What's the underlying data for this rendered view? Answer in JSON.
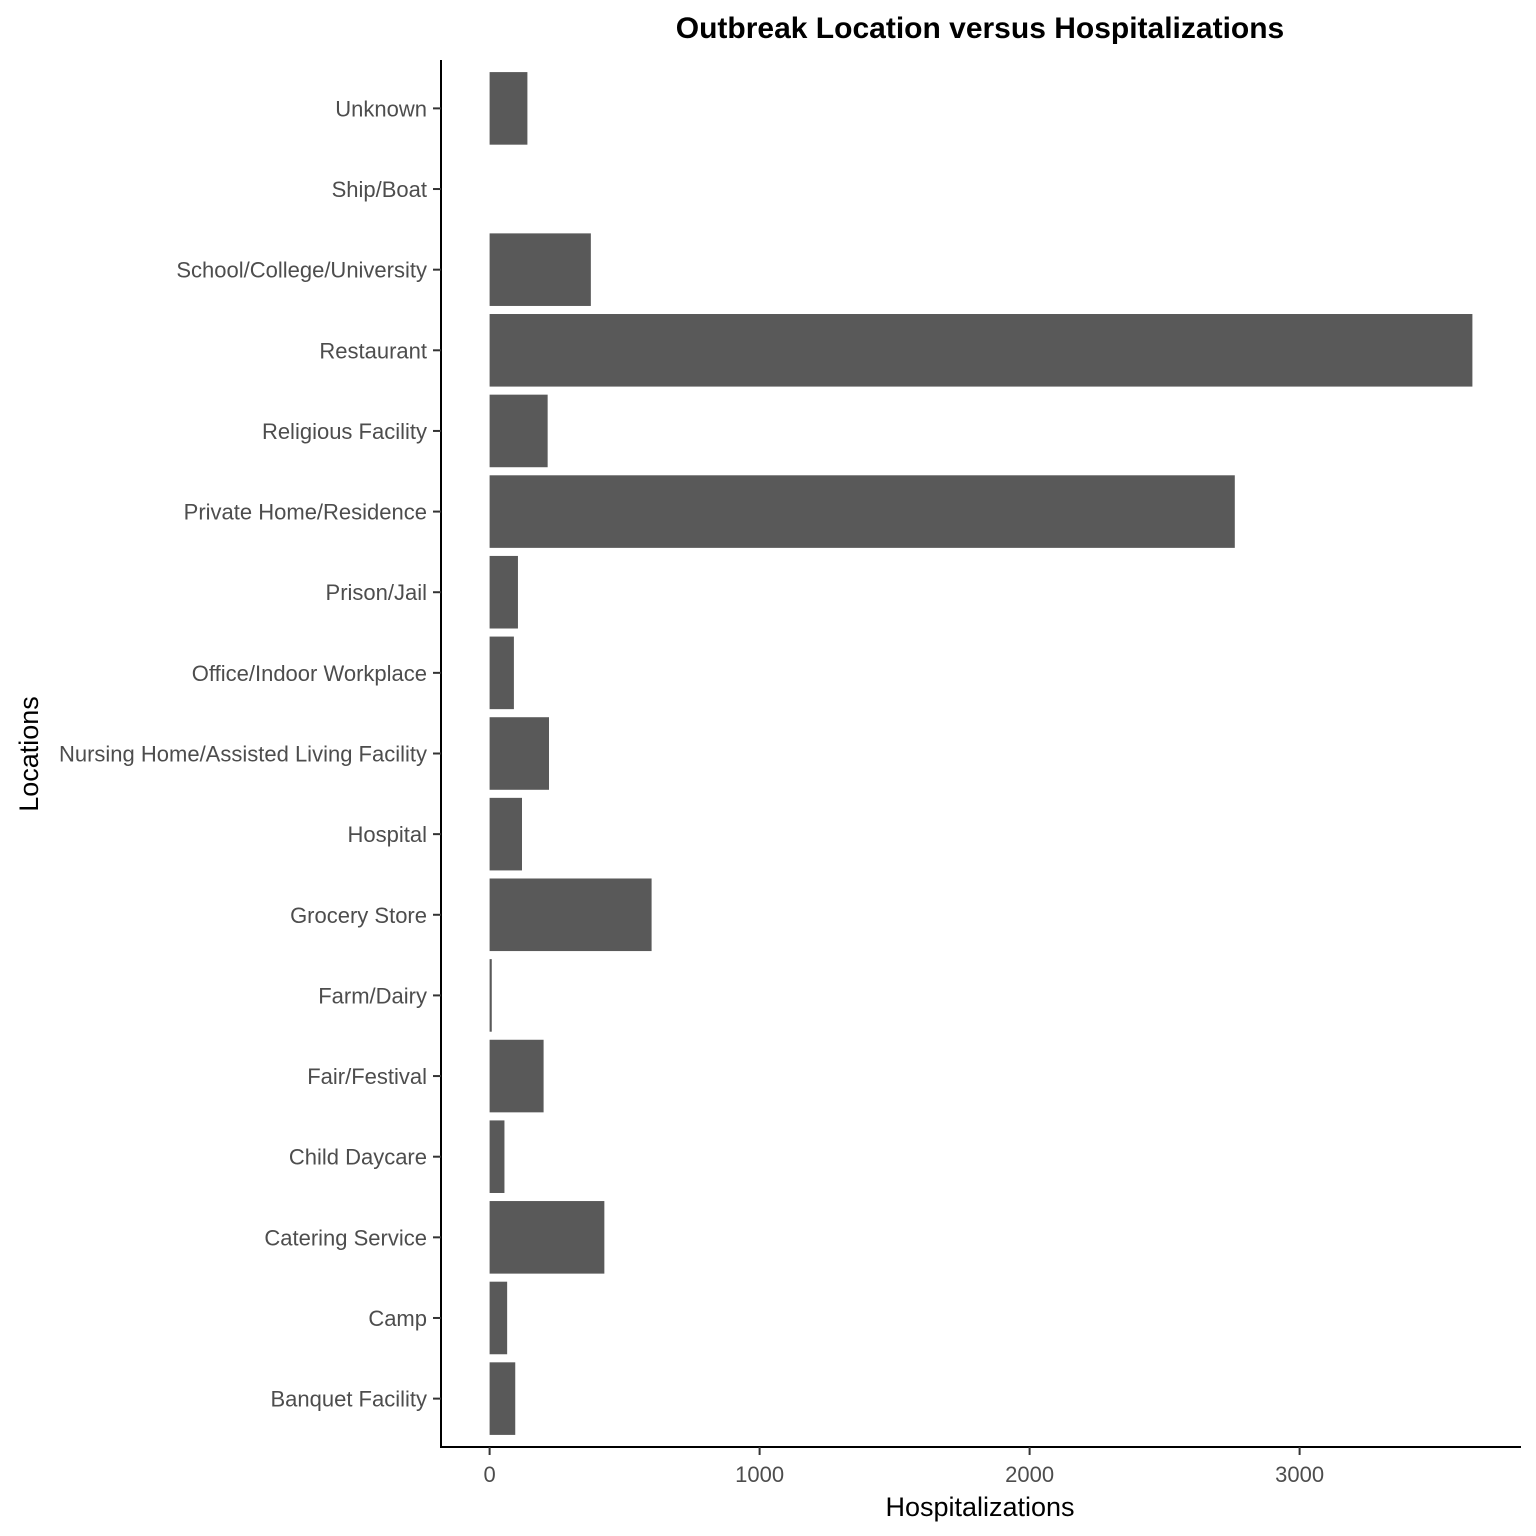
{
  "chart_data": {
    "type": "bar",
    "orientation": "horizontal",
    "title": "Outbreak Location versus Hospitalizations",
    "xlabel": "Hospitalizations",
    "ylabel": "Locations",
    "categories": [
      "Banquet Facility",
      "Camp",
      "Catering Service",
      "Child Daycare",
      "Fair/Festival",
      "Farm/Dairy",
      "Grocery Store",
      "Hospital",
      "Nursing Home/Assisted Living Facility",
      "Office/Indoor Workplace",
      "Prison/Jail",
      "Private Home/Residence",
      "Religious Facility",
      "Restaurant",
      "School/College/University",
      "Ship/Boat",
      "Unknown"
    ],
    "values": [
      95,
      65,
      425,
      55,
      200,
      8,
      600,
      120,
      220,
      90,
      105,
      2760,
      215,
      3640,
      375,
      0,
      140
    ],
    "x_ticks": [
      0,
      1000,
      2000,
      3000
    ],
    "xlim": [
      -180,
      3820
    ],
    "bar_color": "#595959",
    "grid": false
  }
}
